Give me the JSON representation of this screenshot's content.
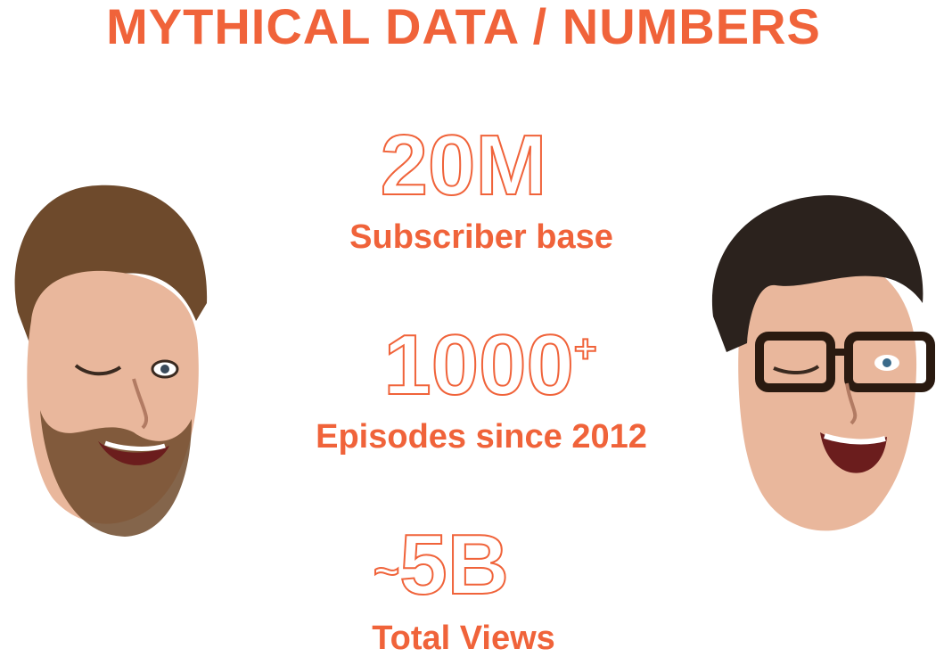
{
  "colors": {
    "accent": "#f0633a",
    "skin": "#e9b79c",
    "hair_left": "#6e4a2c",
    "hair_right": "#2b221d"
  },
  "title": "MYTHICAL DATA / NUMBERS",
  "stats": [
    {
      "value": "20M",
      "suffix": "",
      "prefix": "",
      "label": "Subscriber base"
    },
    {
      "value": "1000",
      "suffix": "+",
      "prefix": "",
      "label": "Episodes since 2012"
    },
    {
      "value": "5B",
      "suffix": "",
      "prefix": "~",
      "label": "Total Views"
    }
  ],
  "images": [
    {
      "name": "bearded-man-face",
      "description_icon": "face-left-icon"
    },
    {
      "name": "glasses-man-face",
      "description_icon": "face-right-icon"
    }
  ]
}
